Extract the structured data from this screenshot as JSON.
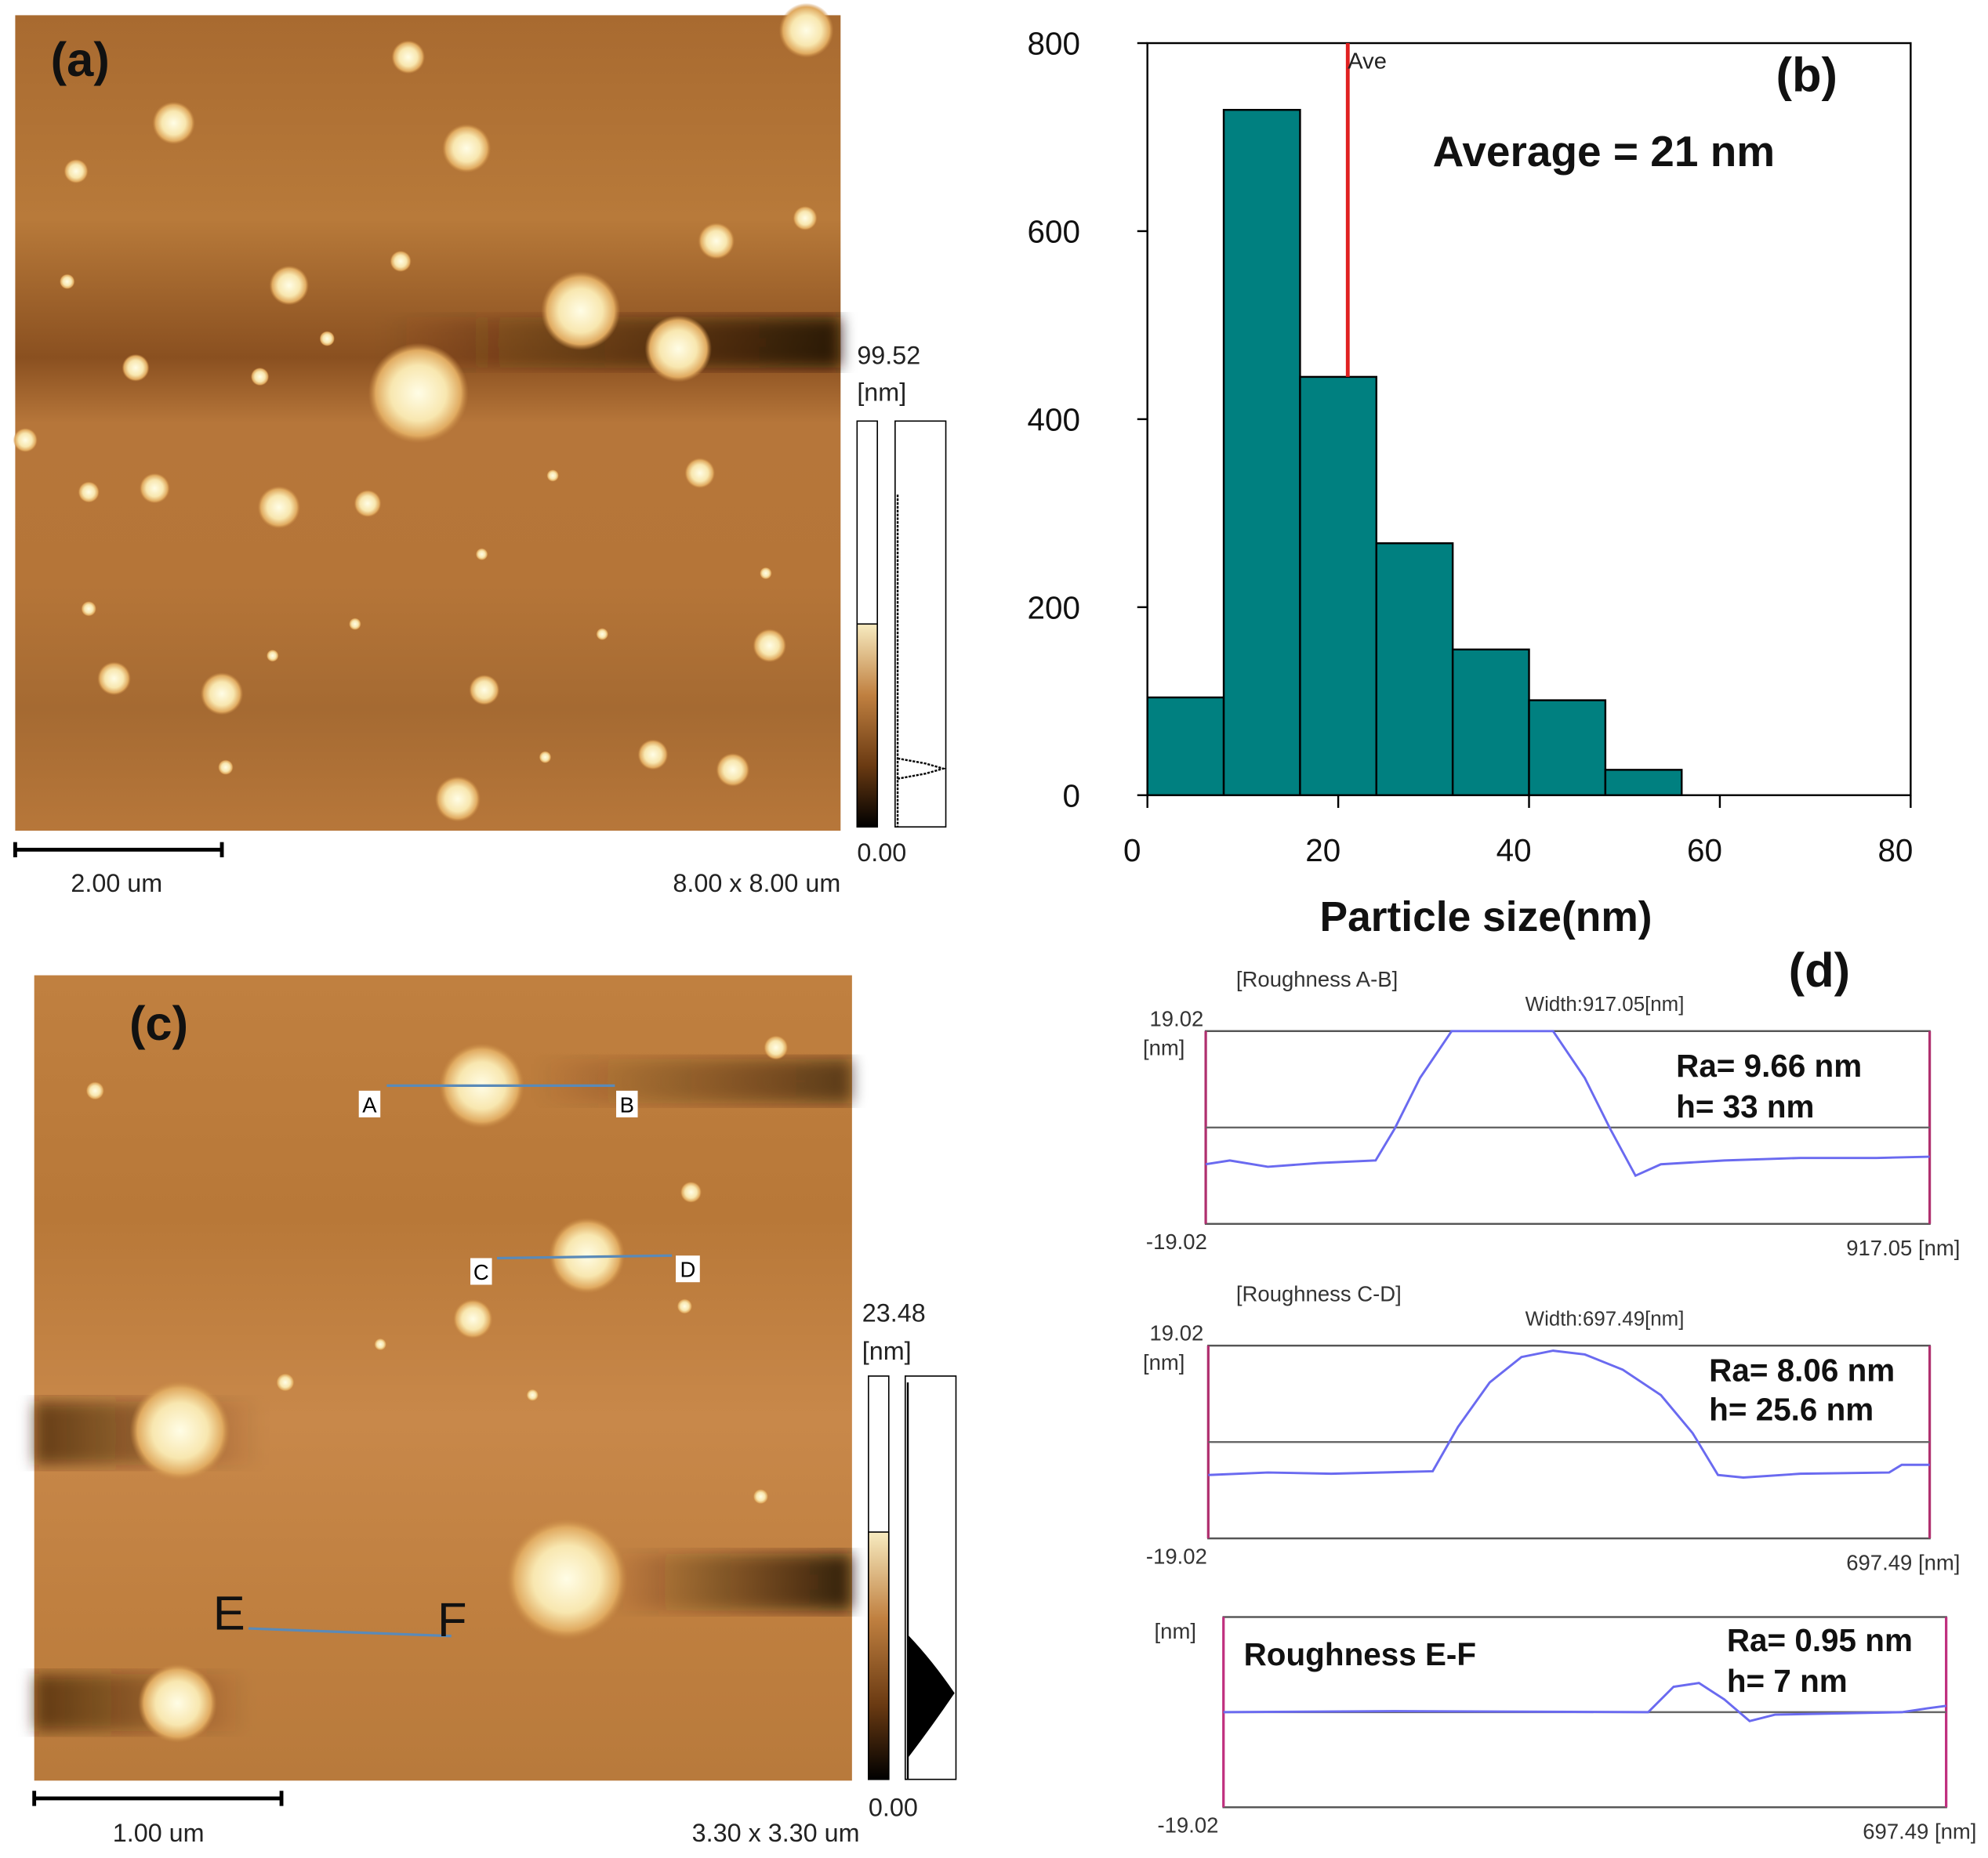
{
  "images": [
    {
      "label": "(a)",
      "scale_max": "99.52",
      "scale_unit": "[nm]",
      "scale_min": "0.00",
      "scale_bar": "2.00 um",
      "size": "8.00 x 8.00 um"
    },
    {
      "label": "(c)",
      "scale_max": "23.48",
      "scale_unit": "[nm]",
      "scale_min": "0.00",
      "scale_bar": "1.00 um",
      "size": "3.30 x 3.30 um",
      "line_labels": [
        "A",
        "B",
        "C",
        "D",
        "E",
        "F"
      ]
    }
  ],
  "chart_data": [
    {
      "type": "histogram",
      "panel_label": "(b)",
      "x_label": "Particle size(nm)",
      "bins": [
        0,
        8,
        16,
        24,
        32,
        40,
        48,
        56
      ],
      "values": [
        104,
        729,
        445,
        268,
        155,
        101,
        27
      ],
      "color": "#008080",
      "xlim": [
        0,
        80
      ],
      "xticks": [
        0,
        20,
        40,
        60,
        80
      ],
      "ylim": [
        0,
        800
      ],
      "yticks": [
        0,
        200,
        400,
        600,
        800
      ],
      "reference_line": {
        "value": 21,
        "label": "Ave",
        "color": "#e02020"
      },
      "annotation": "Average = 21 nm"
    },
    {
      "type": "line",
      "panel_label": "(d)",
      "title": "[Roughness A-B]",
      "width_label": "Width:917.05[nm]",
      "y_label": "[nm]",
      "x": [
        0,
        30.5,
        78.7,
        142.9,
        215.2,
        239.3,
        271.4,
        311.5,
        440,
        480.2,
        512.3,
        544.4,
        576.5,
        656.8,
        753.2,
        849.5,
        917.05
      ],
      "values": [
        -7.26,
        -6.51,
        -7.76,
        -7.01,
        -6.51,
        -0.25,
        9.76,
        19.02,
        19.02,
        9.76,
        -0.25,
        -9.51,
        -7.26,
        -6.51,
        -6.01,
        -6.01,
        -5.76
      ],
      "color": "#6a6af0",
      "xlim": [
        0,
        917.05
      ],
      "xticks": [
        {
          "value": 917.05,
          "label": "917.05 [nm]"
        }
      ],
      "ylim": [
        -19.02,
        19.02
      ],
      "yticks": [
        -19.02,
        19.02
      ],
      "annotations": [
        "Ra= 9.66 nm",
        "h= 33 nm"
      ]
    },
    {
      "type": "line",
      "title": "[Roughness C-D]",
      "width_label": "Width:697.49[nm]",
      "y_label": "[nm]",
      "x": [
        0,
        57.6,
        118.9,
        217,
        241.5,
        272.1,
        302.8,
        333.4,
        364.1,
        400.8,
        437.6,
        468.3,
        492.8,
        517.3,
        572.4,
        658.3,
        670.5,
        697.49
      ],
      "values": [
        -6.51,
        -6.01,
        -6.26,
        -5.76,
        3,
        11.76,
        16.77,
        18.02,
        17.27,
        14.27,
        9.26,
        1.75,
        -6.51,
        -7.01,
        -6.26,
        -6.01,
        -4.5,
        -4.5
      ],
      "color": "#6a6af0",
      "xlim": [
        0,
        697.49
      ],
      "xticks": [
        {
          "value": 697.49,
          "label": "697.49 [nm]"
        }
      ],
      "ylim": [
        -19.02,
        19.02
      ],
      "yticks": [
        -19.02,
        19.02
      ],
      "annotations": [
        "Ra= 8.06 nm",
        "h= 25.6 nm"
      ]
    },
    {
      "type": "line",
      "title": "Roughness E-F",
      "y_label": "[nm]",
      "x": [
        0,
        165.2,
        409.9,
        434.4,
        458.9,
        483.4,
        507.8,
        532.3,
        654.7,
        679.2,
        697.49
      ],
      "values": [
        0,
        0.2,
        0,
        5.07,
        5.83,
        2.54,
        -1.78,
        -0.5,
        0,
        0.76,
        1.27
      ],
      "color": "#6a6af0",
      "xlim": [
        0,
        697.49
      ],
      "xticks": [
        {
          "value": 697.49,
          "label": "697.49 [nm]"
        }
      ],
      "ylim": [
        -19.02,
        19.02
      ],
      "yticks": [
        -19.02
      ],
      "annotations": [
        "Ra= 0.95 nm",
        "h= 7 nm"
      ]
    }
  ]
}
